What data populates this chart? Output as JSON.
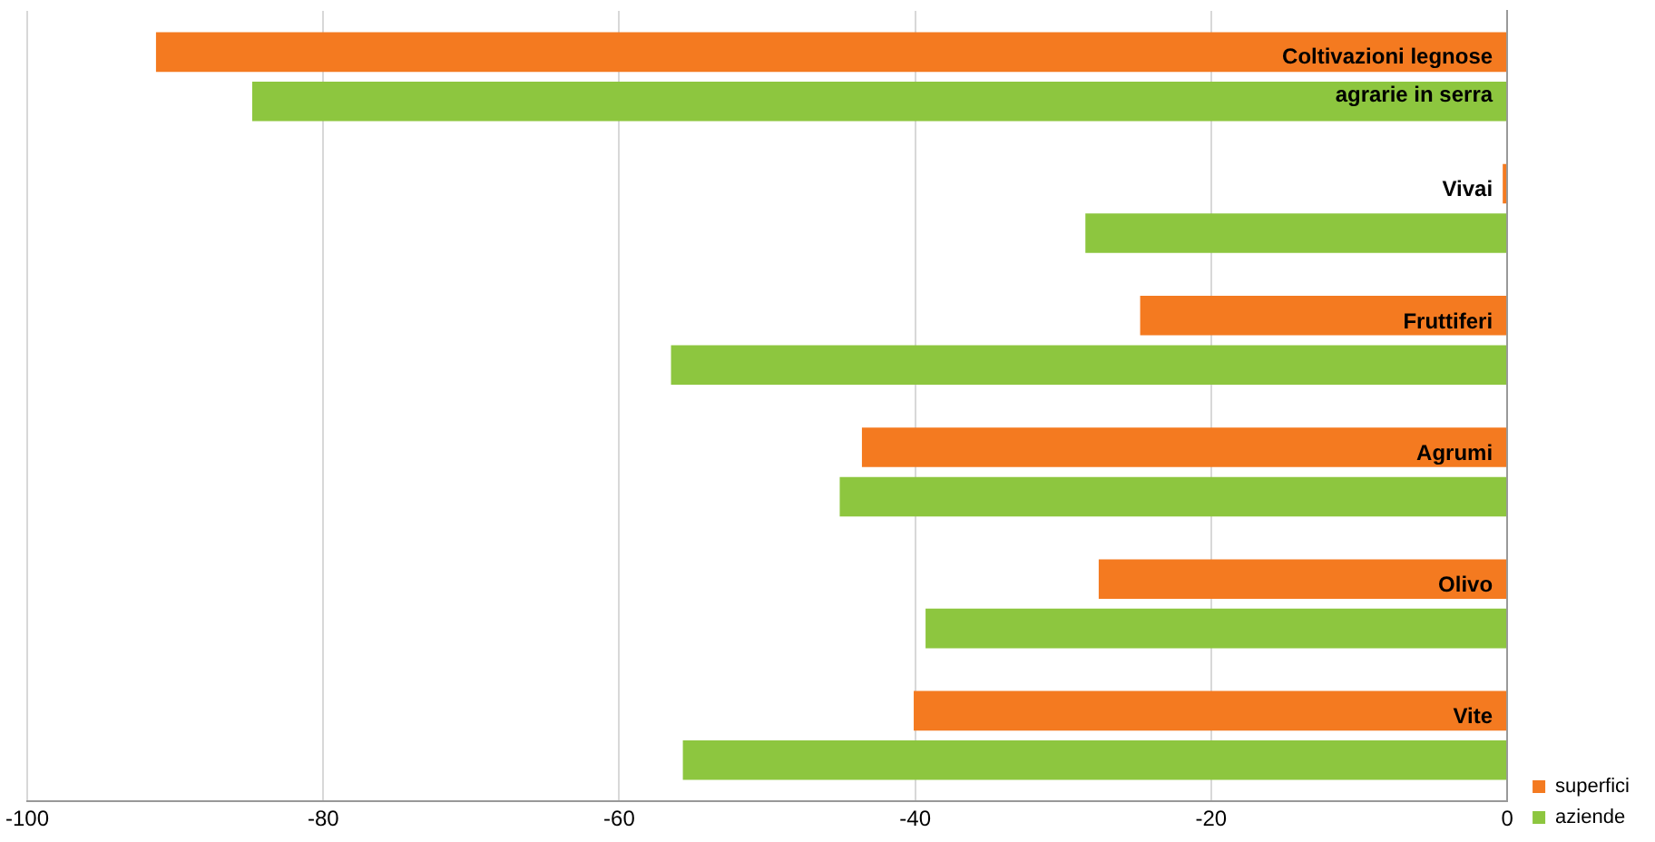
{
  "chart_data": {
    "type": "bar",
    "orientation": "horizontal",
    "categories": [
      "Coltivazioni legnose agrarie in serra",
      "Vivai",
      "Fruttiferi",
      "Agrumi",
      "Olivo",
      "Vite"
    ],
    "series": [
      {
        "name": "superfici",
        "color": "#f47a20",
        "values": [
          -91.3,
          -0.3,
          -24.8,
          -43.6,
          -27.6,
          -40.1
        ]
      },
      {
        "name": "aziende",
        "color": "#8dc63f",
        "values": [
          -84.8,
          -28.5,
          -56.5,
          -45.1,
          -39.3,
          -55.7
        ]
      }
    ],
    "xlim": [
      -100,
      0
    ],
    "xticks": [
      -100,
      -80,
      -60,
      -40,
      -20,
      0
    ],
    "grid": "x",
    "legend": "bottom right"
  }
}
